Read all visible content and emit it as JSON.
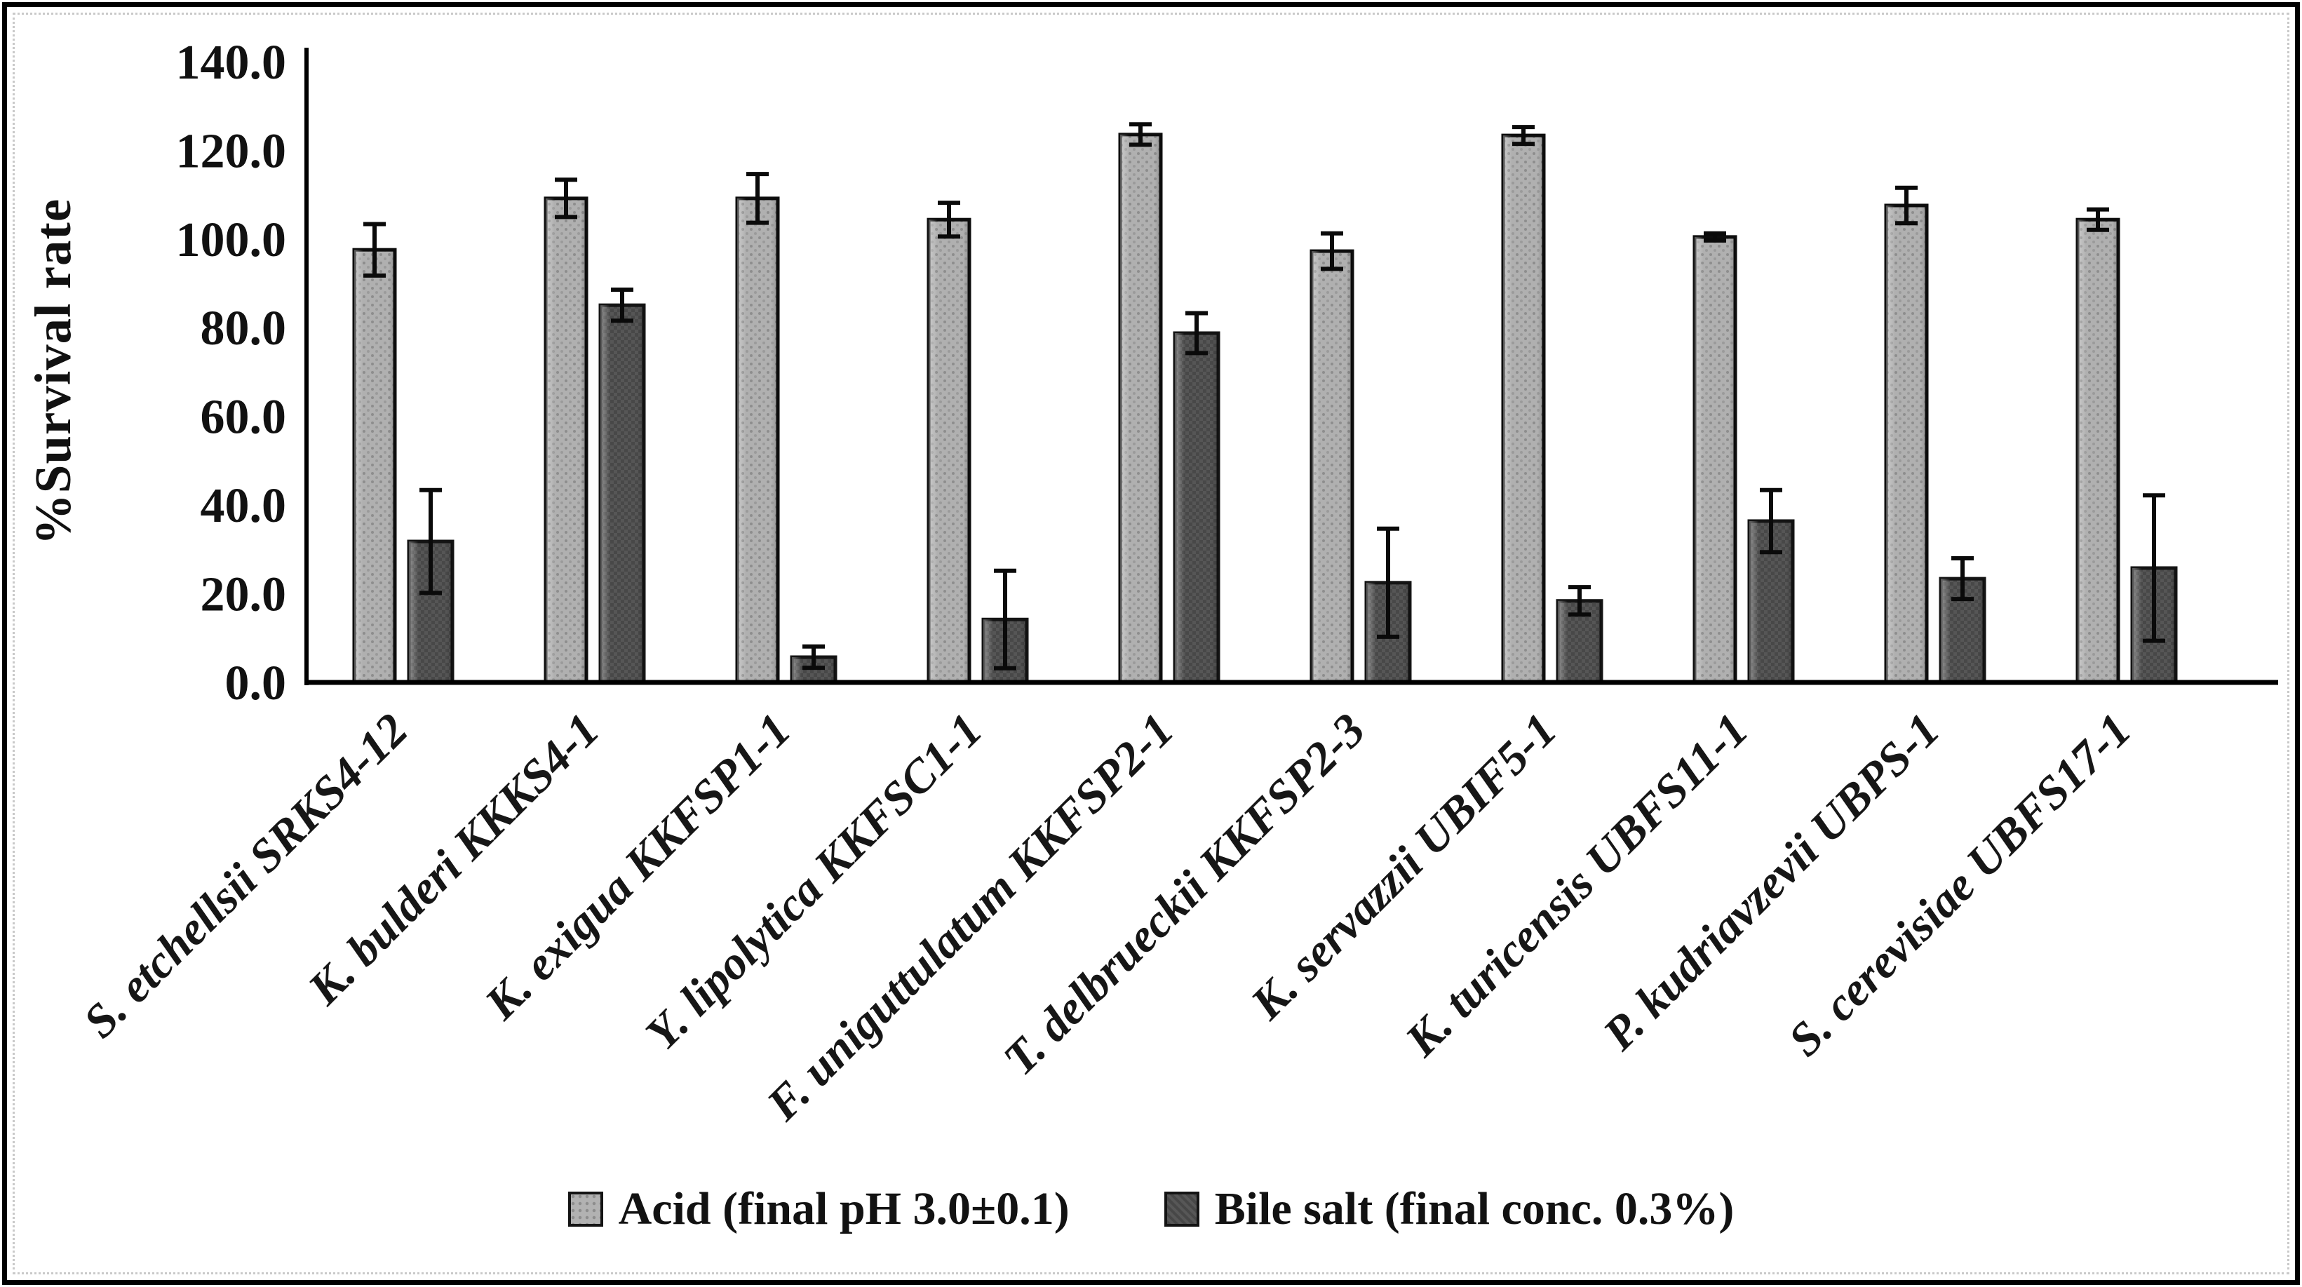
{
  "figure": {
    "background": "#ffffff",
    "frame_color": "#000000",
    "inner_dotted_border_color": "#c9c9c9",
    "text_color": "#111111"
  },
  "chart_data": {
    "type": "bar",
    "title": "",
    "xlabel": "",
    "ylabel": "%Survival rate",
    "ylim": [
      0,
      140
    ],
    "yticks": [
      0,
      20,
      40,
      60,
      80,
      100,
      120,
      140
    ],
    "ytick_decimals": 1,
    "grid": false,
    "legend_position": "bottom-center",
    "error_bars": true,
    "categories": [
      "S. etchellsii SRKS4-12",
      "K. bulderi KKKS4-1",
      "K. exigua KKFSP1-1",
      "Y. lipolytica KKFSC1-1",
      "F. uniguttulatum KKFSP2-1",
      "T. delbrueckii KKFSP2-3",
      "K. servazzii UBIF5-1",
      "K. turicensis UBFS11-1",
      "P. kudriavzevii UBPS-1",
      "S. cerevisiae UBFS17-1"
    ],
    "series": [
      {
        "name": "Acid (final pH 3.0±0.1)",
        "color": "#b0b0b0",
        "values": [
          97.6,
          109.2,
          109.2,
          104.4,
          123.6,
          97.3,
          123.4,
          100.5,
          107.6,
          104.4
        ],
        "errors": [
          5.8,
          4.2,
          5.5,
          3.8,
          2.3,
          4.0,
          1.9,
          0.8,
          4.0,
          2.3
        ]
      },
      {
        "name": "Bile salt (final conc. 0.3%)",
        "color": "#4f4f4f",
        "values": [
          31.8,
          85.1,
          5.7,
          14.2,
          78.8,
          22.5,
          18.4,
          36.4,
          23.4,
          25.8
        ],
        "errors": [
          11.6,
          3.5,
          2.4,
          11.0,
          4.5,
          12.2,
          3.1,
          7.0,
          4.6,
          16.4
        ]
      }
    ]
  }
}
